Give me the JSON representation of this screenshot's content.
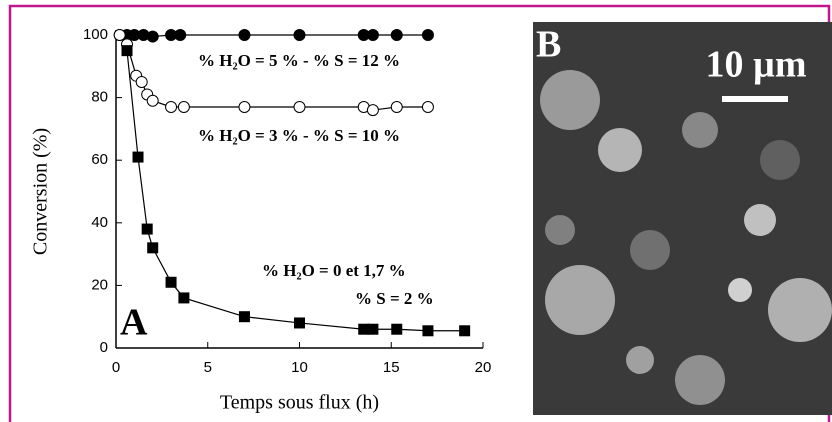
{
  "chart_data": {
    "type": "line",
    "x_label": "Temps sous flux (h)",
    "y_label": "Conversion (%)",
    "xlim": [
      0,
      20
    ],
    "ylim": [
      0,
      100
    ],
    "xticks": [
      0,
      5,
      10,
      15,
      20
    ],
    "yticks": [
      0,
      20,
      40,
      60,
      80,
      100
    ],
    "panel_label": "A",
    "series": [
      {
        "name": "% H₂O = 5 % - % S = 12 %",
        "color": "#000000",
        "marker": "circle-filled",
        "x": [
          0.2,
          0.6,
          1,
          1.5,
          2,
          3,
          3.5,
          7,
          10,
          13.5,
          14,
          15.3,
          17
        ],
        "values": [
          100,
          100,
          100,
          100,
          99.5,
          100,
          100,
          100,
          100,
          100,
          100,
          100,
          100
        ]
      },
      {
        "name": "% H₂O = 3 % - % S = 10 %",
        "color": "#000000",
        "marker": "circle-open",
        "x": [
          0.2,
          0.6,
          1.1,
          1.4,
          1.7,
          2,
          3,
          3.7,
          7,
          10,
          13.5,
          14,
          15.3,
          17
        ],
        "values": [
          100,
          97,
          87,
          85,
          81,
          79,
          77,
          77,
          77,
          77,
          77,
          76,
          77,
          77
        ]
      },
      {
        "name": "% H₂O = 0 et 1,7  %",
        "color": "#000000",
        "marker": "square",
        "x": [
          0.6,
          1.2,
          1.7,
          2,
          3,
          3.7,
          7,
          10,
          13.5,
          14,
          15.3,
          17,
          19
        ],
        "values": [
          95,
          61,
          38,
          32,
          21,
          16,
          10,
          8,
          6,
          6,
          6,
          5.5,
          5.5
        ]
      }
    ],
    "annotation": "% S = 2 %"
  },
  "image": {
    "label": "B",
    "scale_bar": "10 µm"
  }
}
